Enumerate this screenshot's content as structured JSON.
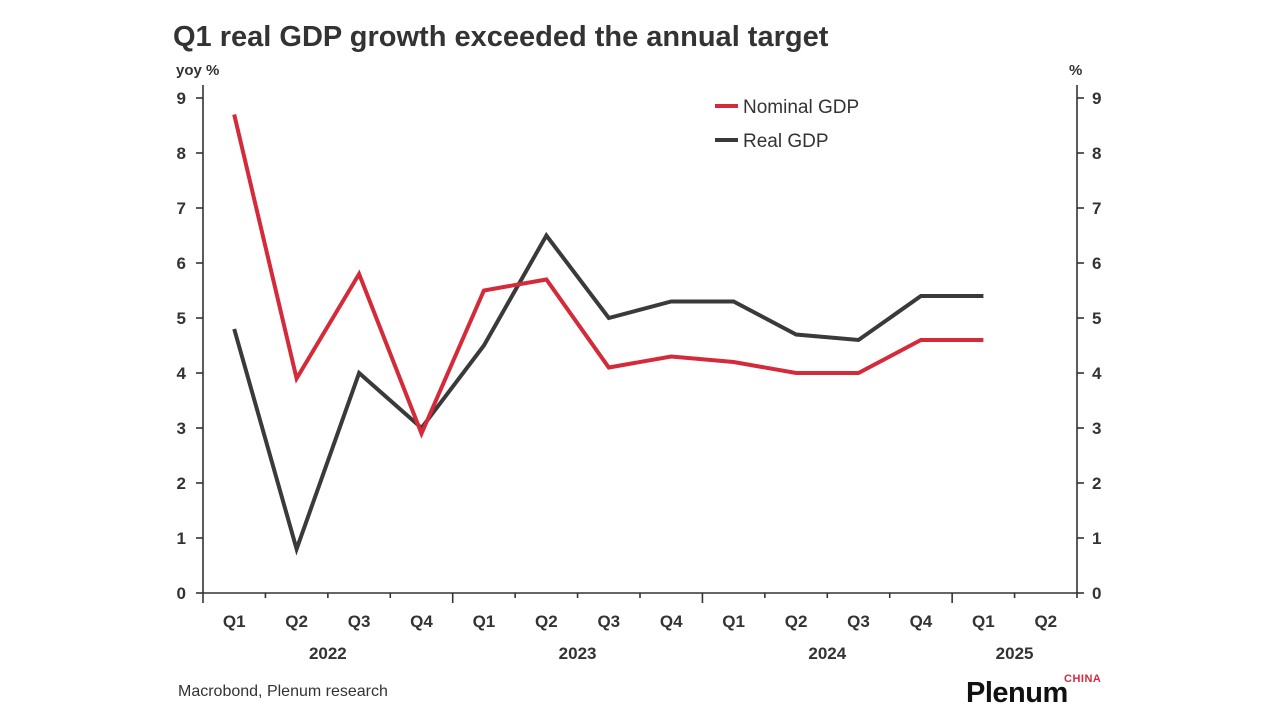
{
  "source": "Macrobond, Plenum research",
  "logo": {
    "name": "Plenum",
    "region": "CHINA"
  },
  "colors": {
    "nominal": "#d42a3a",
    "real": "#3a3a3a",
    "text": "#333333",
    "logo_accent": "#d42a3a"
  },
  "chart_data": {
    "type": "line",
    "title": "Q1 real GDP growth exceeded the annual target",
    "ylabel_left": "yoy %",
    "ylabel_right": "%",
    "ylim": [
      0,
      9
    ],
    "yticks": [
      0,
      1,
      2,
      3,
      4,
      5,
      6,
      7,
      8,
      9
    ],
    "grid": false,
    "legend": "top-center",
    "categories": [
      "Q1",
      "Q2",
      "Q3",
      "Q4",
      "Q1",
      "Q2",
      "Q3",
      "Q4",
      "Q1",
      "Q2",
      "Q3",
      "Q4",
      "Q1",
      "Q2"
    ],
    "year_groups": [
      {
        "label": "2022",
        "span": 4
      },
      {
        "label": "2023",
        "span": 4
      },
      {
        "label": "2024",
        "span": 4
      },
      {
        "label": "2025",
        "span": 2
      }
    ],
    "series": [
      {
        "name": "Nominal GDP",
        "color": "#d42a3a",
        "values": [
          8.7,
          3.9,
          5.8,
          2.9,
          5.5,
          5.7,
          4.1,
          4.3,
          4.2,
          4.0,
          4.0,
          4.6,
          4.6,
          null
        ]
      },
      {
        "name": "Real GDP",
        "color": "#3a3a3a",
        "values": [
          4.8,
          0.8,
          4.0,
          3.0,
          4.5,
          6.5,
          5.0,
          5.3,
          5.3,
          4.7,
          4.6,
          5.4,
          5.4,
          null
        ]
      }
    ]
  }
}
